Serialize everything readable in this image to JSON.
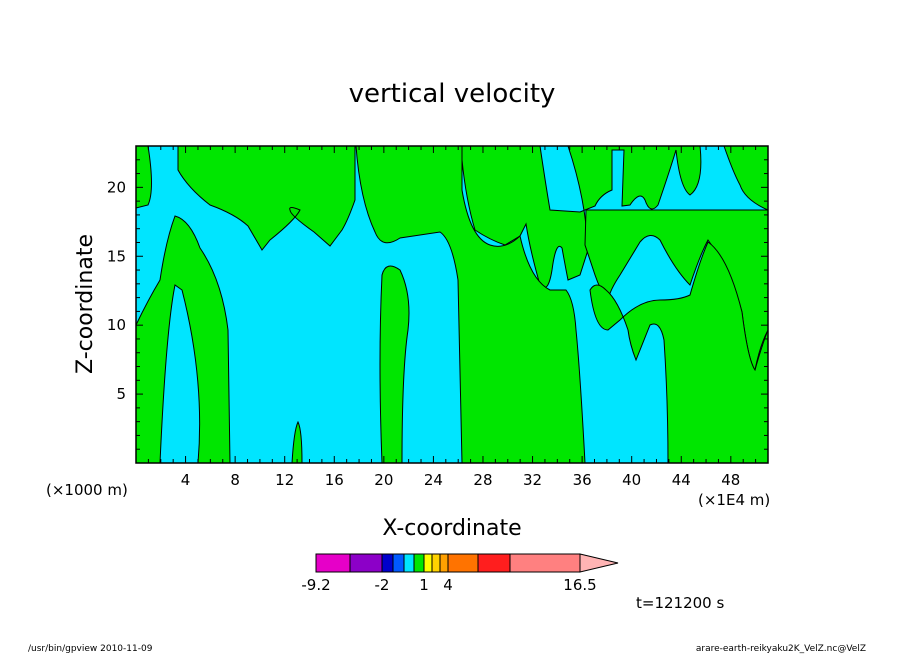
{
  "chart_data": {
    "type": "contour",
    "title": "vertical velocity",
    "xlabel": "X-coordinate",
    "ylabel": "Z-coordinate",
    "x_unit_left": "(×1000 m)",
    "x_unit_right": "(×1E4 m)",
    "x_ticks": [
      "4",
      "8",
      "12",
      "16",
      "20",
      "24",
      "28",
      "32",
      "36",
      "40",
      "44",
      "48"
    ],
    "y_ticks": [
      "5",
      "10",
      "15",
      "20"
    ],
    "xlim": [
      0,
      51
    ],
    "ylim": [
      0,
      23
    ],
    "grid": false,
    "region_colors": {
      "negative": "#00e5ff",
      "positive": "#00e600"
    },
    "colorbar": {
      "colors": [
        "#e600c8",
        "#8c00c8",
        "#0000cc",
        "#005aff",
        "#00e5ff",
        "#00e600",
        "#ffff00",
        "#ffd200",
        "#ffa000",
        "#ff7300",
        "#ff1e1e",
        "#ff8080",
        "#ffb4b4"
      ],
      "tick_labels": [
        {
          "label": "-9.2",
          "value": -9.2
        },
        {
          "label": "-2",
          "value": -2
        },
        {
          "label": "1",
          "value": 1
        },
        {
          "label": "4",
          "value": 4
        },
        {
          "label": "16.5",
          "value": 16.5
        }
      ]
    }
  },
  "annotations": {
    "time": "t=121200 s",
    "footer_left": "/usr/bin/gpview   2010-11-09",
    "footer_right": "arare-earth-reikyaku2K_VelZ.nc@VelZ"
  }
}
